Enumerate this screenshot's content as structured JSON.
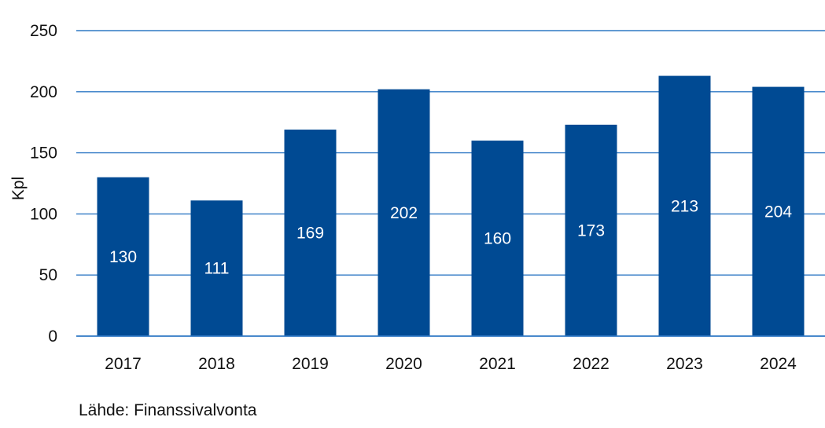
{
  "chart_data": {
    "type": "bar",
    "categories": [
      "2017",
      "2018",
      "2019",
      "2020",
      "2021",
      "2022",
      "2023",
      "2024"
    ],
    "values": [
      130,
      111,
      169,
      202,
      160,
      173,
      213,
      204
    ],
    "data_labels": [
      "130",
      "111",
      "169",
      "202",
      "160",
      "173",
      "213",
      "204"
    ],
    "ylabel": "Kpl",
    "ylim": [
      0,
      250
    ],
    "yticks": [
      "0",
      "50",
      "100",
      "150",
      "200",
      "250"
    ],
    "grid": true,
    "legend": "none",
    "colors": {
      "bar": "#004a93",
      "grid": "#2f78c4",
      "axis": "#2f78c4",
      "text": "#111111",
      "data_label": "#ffffff"
    }
  },
  "source": "Lähde: Finanssivalvonta"
}
